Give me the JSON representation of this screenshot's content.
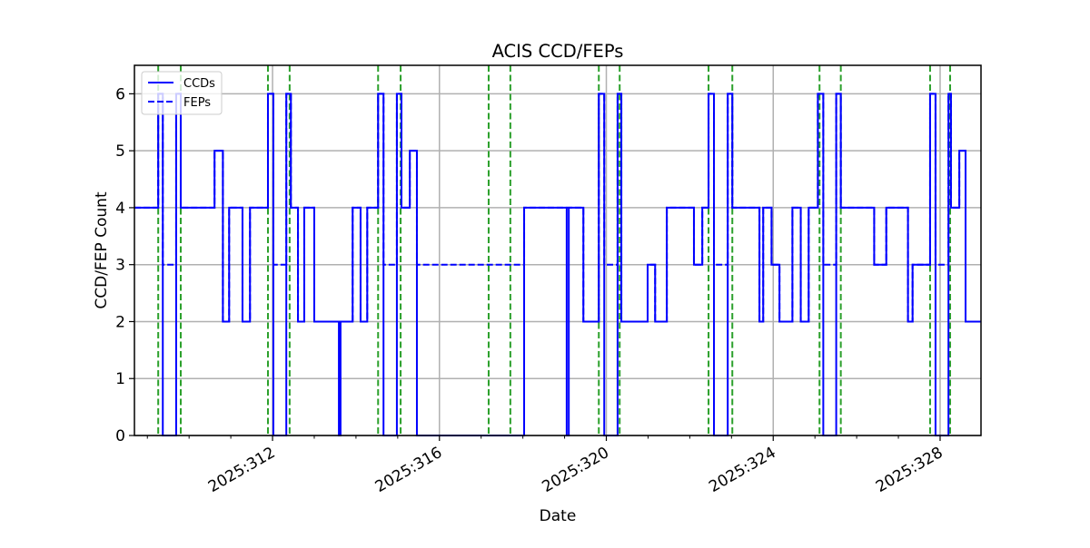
{
  "chart_data": {
    "type": "line",
    "title": "ACIS CCD/FEPs",
    "xlabel": "Date",
    "ylabel": "CCD/FEP Count",
    "xlim": [
      308.69,
      328.98
    ],
    "ylim": [
      0,
      6.5
    ],
    "x_units": "day of year 2025",
    "x_ticks": [
      {
        "value": 312,
        "label": "2025:312"
      },
      {
        "value": 316,
        "label": "2025:316"
      },
      {
        "value": 320,
        "label": "2025:320"
      },
      {
        "value": 324,
        "label": "2025:324"
      },
      {
        "value": 328,
        "label": "2025:328"
      }
    ],
    "x_minor_ticks": [
      309,
      310,
      311,
      313,
      314,
      315,
      317,
      318,
      319,
      321,
      322,
      323,
      325,
      326,
      327
    ],
    "y_ticks": [
      0,
      1,
      2,
      3,
      4,
      5,
      6
    ],
    "grid": true,
    "legend": {
      "position": "upper left",
      "entries": [
        "CCDs",
        "FEPs"
      ]
    },
    "series": [
      {
        "name": "CCDs",
        "style": "solid",
        "color": "#0000ff",
        "step": "post",
        "points": [
          [
            308.69,
            4
          ],
          [
            309.26,
            6
          ],
          [
            309.37,
            0
          ],
          [
            309.69,
            6
          ],
          [
            309.8,
            4
          ],
          [
            310.61,
            5
          ],
          [
            310.81,
            2
          ],
          [
            310.96,
            4
          ],
          [
            311.28,
            2
          ],
          [
            311.46,
            4
          ],
          [
            311.89,
            6
          ],
          [
            312.02,
            0
          ],
          [
            312.33,
            6
          ],
          [
            312.44,
            4
          ],
          [
            312.61,
            2
          ],
          [
            312.76,
            4
          ],
          [
            313.0,
            2
          ],
          [
            313.59,
            0
          ],
          [
            313.63,
            2
          ],
          [
            313.92,
            4
          ],
          [
            314.11,
            2
          ],
          [
            314.27,
            4
          ],
          [
            314.53,
            6
          ],
          [
            314.66,
            0
          ],
          [
            314.98,
            6
          ],
          [
            315.09,
            4
          ],
          [
            315.29,
            5
          ],
          [
            315.46,
            0
          ],
          [
            318.03,
            4
          ],
          [
            319.05,
            0
          ],
          [
            319.1,
            4
          ],
          [
            319.45,
            2
          ],
          [
            319.82,
            6
          ],
          [
            319.95,
            0
          ],
          [
            320.27,
            6
          ],
          [
            320.36,
            2
          ],
          [
            320.99,
            3
          ],
          [
            321.17,
            2
          ],
          [
            321.45,
            4
          ],
          [
            322.1,
            3
          ],
          [
            322.3,
            4
          ],
          [
            322.45,
            6
          ],
          [
            322.58,
            0
          ],
          [
            322.91,
            6
          ],
          [
            323.02,
            4
          ],
          [
            323.67,
            2
          ],
          [
            323.76,
            4
          ],
          [
            323.96,
            3
          ],
          [
            324.15,
            2
          ],
          [
            324.46,
            4
          ],
          [
            324.66,
            2
          ],
          [
            324.85,
            4
          ],
          [
            325.07,
            6
          ],
          [
            325.2,
            0
          ],
          [
            325.51,
            6
          ],
          [
            325.62,
            4
          ],
          [
            326.42,
            3
          ],
          [
            326.71,
            4
          ],
          [
            327.23,
            2
          ],
          [
            327.34,
            3
          ],
          [
            327.76,
            6
          ],
          [
            327.89,
            0
          ],
          [
            328.2,
            6
          ],
          [
            328.26,
            4
          ],
          [
            328.46,
            5
          ],
          [
            328.61,
            2
          ],
          [
            328.98,
            2
          ]
        ]
      },
      {
        "name": "FEPs",
        "style": "dashed",
        "color": "#0000ff",
        "step": "post",
        "points": [
          [
            308.69,
            4
          ],
          [
            309.26,
            6
          ],
          [
            309.37,
            3
          ],
          [
            309.69,
            6
          ],
          [
            309.8,
            4
          ],
          [
            310.61,
            5
          ],
          [
            310.81,
            2
          ],
          [
            310.96,
            4
          ],
          [
            311.28,
            2
          ],
          [
            311.46,
            4
          ],
          [
            311.89,
            6
          ],
          [
            312.02,
            3
          ],
          [
            312.33,
            6
          ],
          [
            312.44,
            4
          ],
          [
            312.61,
            2
          ],
          [
            312.76,
            4
          ],
          [
            313.0,
            2
          ],
          [
            313.92,
            4
          ],
          [
            314.11,
            2
          ],
          [
            314.27,
            4
          ],
          [
            314.53,
            6
          ],
          [
            314.66,
            3
          ],
          [
            314.98,
            6
          ],
          [
            315.09,
            4
          ],
          [
            315.29,
            5
          ],
          [
            315.46,
            3
          ],
          [
            318.03,
            4
          ],
          [
            319.45,
            2
          ],
          [
            319.82,
            6
          ],
          [
            319.95,
            3
          ],
          [
            320.27,
            6
          ],
          [
            320.36,
            2
          ],
          [
            320.99,
            3
          ],
          [
            321.17,
            2
          ],
          [
            321.45,
            4
          ],
          [
            322.1,
            3
          ],
          [
            322.3,
            4
          ],
          [
            322.45,
            6
          ],
          [
            322.58,
            3
          ],
          [
            322.91,
            6
          ],
          [
            323.02,
            4
          ],
          [
            323.67,
            2
          ],
          [
            323.76,
            4
          ],
          [
            323.96,
            3
          ],
          [
            324.15,
            2
          ],
          [
            324.46,
            4
          ],
          [
            324.66,
            2
          ],
          [
            324.85,
            4
          ],
          [
            325.07,
            6
          ],
          [
            325.2,
            3
          ],
          [
            325.51,
            6
          ],
          [
            325.62,
            4
          ],
          [
            326.42,
            3
          ],
          [
            326.71,
            4
          ],
          [
            327.23,
            2
          ],
          [
            327.34,
            3
          ],
          [
            327.76,
            6
          ],
          [
            327.89,
            3
          ],
          [
            328.2,
            6
          ],
          [
            328.26,
            4
          ],
          [
            328.46,
            5
          ],
          [
            328.61,
            2
          ],
          [
            328.98,
            2
          ]
        ]
      }
    ],
    "vertical_markers": {
      "style": "dashed",
      "color": "#2ca02c",
      "x": [
        309.26,
        309.8,
        311.89,
        312.41,
        314.53,
        315.07,
        317.18,
        317.7,
        319.82,
        320.32,
        322.45,
        323.02,
        325.11,
        325.62,
        327.76,
        328.24
      ]
    }
  }
}
